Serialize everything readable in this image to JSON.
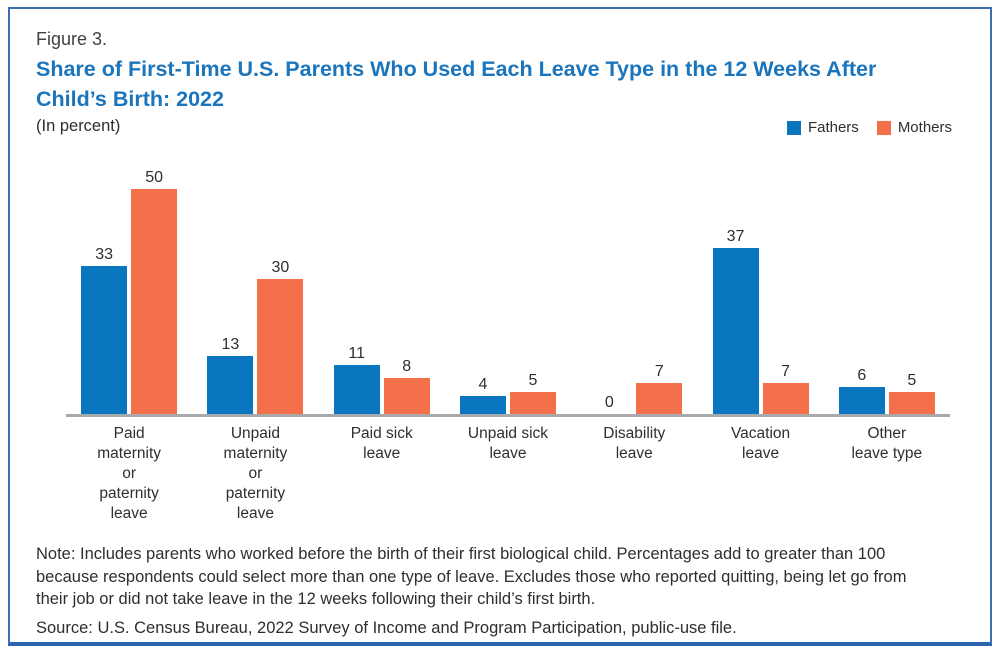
{
  "figure_label": "Figure 3.",
  "title": "Share of First-Time U.S. Parents Who Used Each Leave Type in the 12 Weeks After Child’s Birth: 2022",
  "subtitle": "(In percent)",
  "chart_data": {
    "type": "bar",
    "title": "Share of First-Time U.S. Parents Who Used Each Leave Type in the 12 Weeks After Child’s Birth: 2022",
    "units": "percent",
    "categories": [
      "Paid\nmaternity\nor\npaternity\nleave",
      "Unpaid\nmaternity\nor\npaternity\nleave",
      "Paid sick\nleave",
      "Unpaid sick\nleave",
      "Disability\nleave",
      "Vacation\nleave",
      "Other\nleave type"
    ],
    "series": [
      {
        "name": "Fathers",
        "color": "#0b76c0",
        "values": [
          33,
          13,
          11,
          4,
          0,
          37,
          6
        ]
      },
      {
        "name": "Mothers",
        "color": "#f3704b",
        "values": [
          50,
          30,
          8,
          5,
          7,
          7,
          5
        ]
      }
    ],
    "ylim": [
      0,
      55
    ],
    "grid": false,
    "value_labels": true,
    "legend_position": "top-right",
    "axis_line_color": "#a7a9ac"
  },
  "note": "Note: Includes parents who worked before the birth of their first biological child. Percentages add to greater than 100 because respondents could select more than one type of leave. Excludes those who reported quitting, being let go from their job or did not take leave in the 12 weeks following their child’s first birth.",
  "source": "Source: U.S. Census Bureau, 2022 Survey of Income and Program Participation, public-use file.",
  "colors": {
    "title_blue": "#1b75bc",
    "fathers_blue": "#0b76c0",
    "mothers_orange": "#f3704b",
    "frame_border": "#3a6fb4",
    "frame_bottom_border": "#2d64ae",
    "axis_gray": "#a7a9ac",
    "text_dark": "#2e2e2e"
  }
}
